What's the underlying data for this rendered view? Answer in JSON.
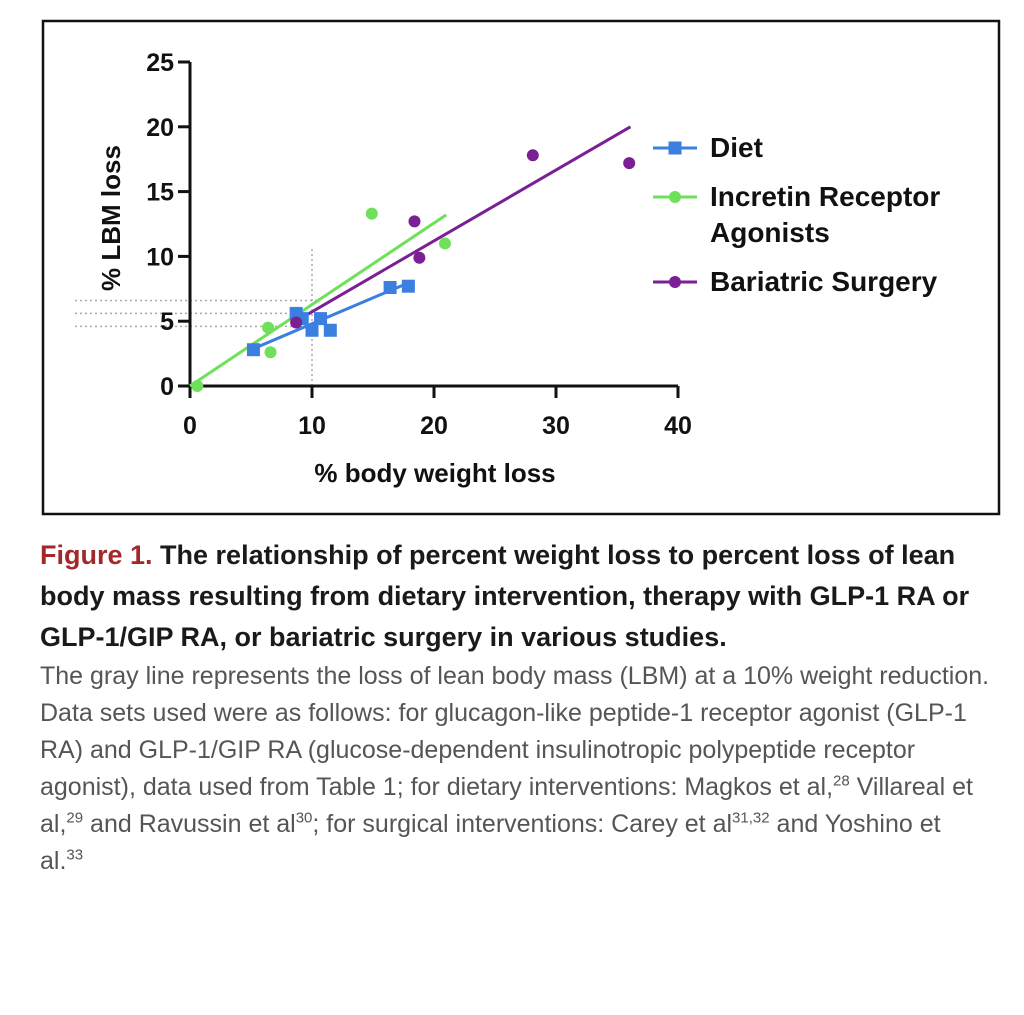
{
  "chart_data": {
    "type": "scatter",
    "x_label": "% body weight loss",
    "y_label": "% LBM loss",
    "xlim": [
      0,
      40
    ],
    "ylim": [
      0,
      25
    ],
    "xticks": [
      0,
      10,
      20,
      30,
      40
    ],
    "yticks": [
      0,
      5,
      10,
      15,
      20,
      25
    ],
    "reference_lines": {
      "x": 10,
      "y": [
        4.6,
        5.6,
        6.6
      ]
    },
    "series": [
      {
        "name": "Diet",
        "color": "#3b7fe0",
        "marker": "square",
        "x": [
          5.2,
          8.7,
          9.2,
          10,
          10.7,
          11.5,
          16.4,
          17.9
        ],
        "values": [
          2.8,
          5.6,
          5.2,
          4.3,
          5.2,
          4.3,
          7.6,
          7.7
        ],
        "fit": {
          "x": [
            5,
            18
          ],
          "values": [
            2.8,
            8.0
          ]
        }
      },
      {
        "name": "Incretin Receptor Agonists",
        "color": "#6ee05a",
        "marker": "circle",
        "x": [
          0.6,
          6.4,
          6.6,
          14.9,
          20.9
        ],
        "values": [
          0,
          4.5,
          2.6,
          13.3,
          11
        ],
        "fit": {
          "x": [
            0,
            21
          ],
          "values": [
            0,
            13.2
          ]
        }
      },
      {
        "name": "Bariatric Surgery",
        "color": "#7a1f94",
        "marker": "circle",
        "x": [
          8.7,
          18.4,
          18.8,
          28.1,
          36
        ],
        "values": [
          4.9,
          12.7,
          9.9,
          17.8,
          17.2
        ],
        "fit": {
          "x": [
            9.4,
            36.1
          ],
          "values": [
            5.4,
            20
          ]
        }
      }
    ]
  },
  "caption": {
    "label": "Figure 1.",
    "title": "The relationship of percent weight loss to percent loss of lean body mass resulting from dietary intervention, therapy with GLP-1 RA or GLP-1/GIP RA, or bariatric surgery in various studies.",
    "body_parts": [
      {
        "text": "The gray line represents the loss of lean body mass (LBM) at a 10% weight reduction. Data sets used were as follows: for glucagon-like peptide-1 receptor agonist (GLP-1 RA) and GLP-1/GIP RA (glucose-dependent insulinotropic polypeptide receptor agonist), data used from Table 1; for dietary interventions: Magkos et al,",
        "sup": "28"
      },
      {
        "text": " Villareal et al,",
        "sup": "29"
      },
      {
        "text": " and Ravussin et al",
        "sup": "30"
      },
      {
        "text": "; for surgical interventions: Carey et al",
        "sup": "31,32"
      },
      {
        "text": " and Yoshino et al.",
        "sup": "33"
      }
    ]
  }
}
